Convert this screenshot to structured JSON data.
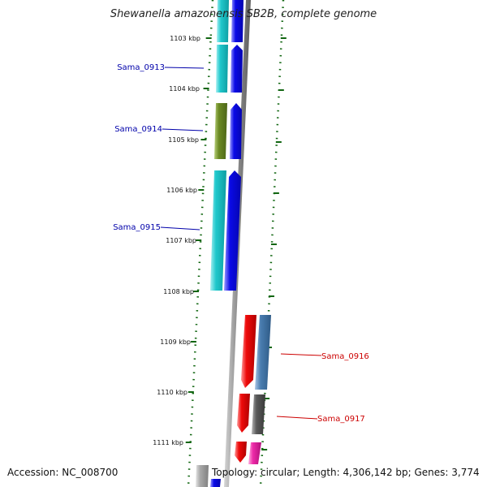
{
  "title": "Shewanella amazonensis SB2B, complete genome",
  "accession": "Accession: NC_008700",
  "topology": "Topology: circular; Length: 4,306,142 bp; Genes: 3,774",
  "ticks": [
    "1103 kbp",
    "1104 kbp",
    "1105 kbp",
    "1106 kbp",
    "1107 kbp",
    "1108 kbp",
    "1109 kbp",
    "1110 kbp",
    "1111 kbp"
  ],
  "labels": [
    {
      "name": "Sama_0913",
      "side": "left",
      "color": "#0000aa"
    },
    {
      "name": "Sama_0914",
      "side": "left",
      "color": "#0000aa"
    },
    {
      "name": "Sama_0915",
      "side": "left",
      "color": "#0000aa"
    },
    {
      "name": "Sama_0916",
      "side": "right",
      "color": "#cc0000"
    },
    {
      "name": "Sama_0917",
      "side": "right",
      "color": "#cc0000"
    }
  ],
  "colors": {
    "backbone": "#8c8c8c",
    "tick": "#116611",
    "cyan": "#20c8cc",
    "blue": "#0a0ae6",
    "olive": "#6b8a23",
    "red": "#ee0b0b",
    "steelblue": "#4a7db0",
    "gray": "#5a5a5a",
    "magenta": "#ee2aa8",
    "lightgray": "#a8a8a8"
  }
}
